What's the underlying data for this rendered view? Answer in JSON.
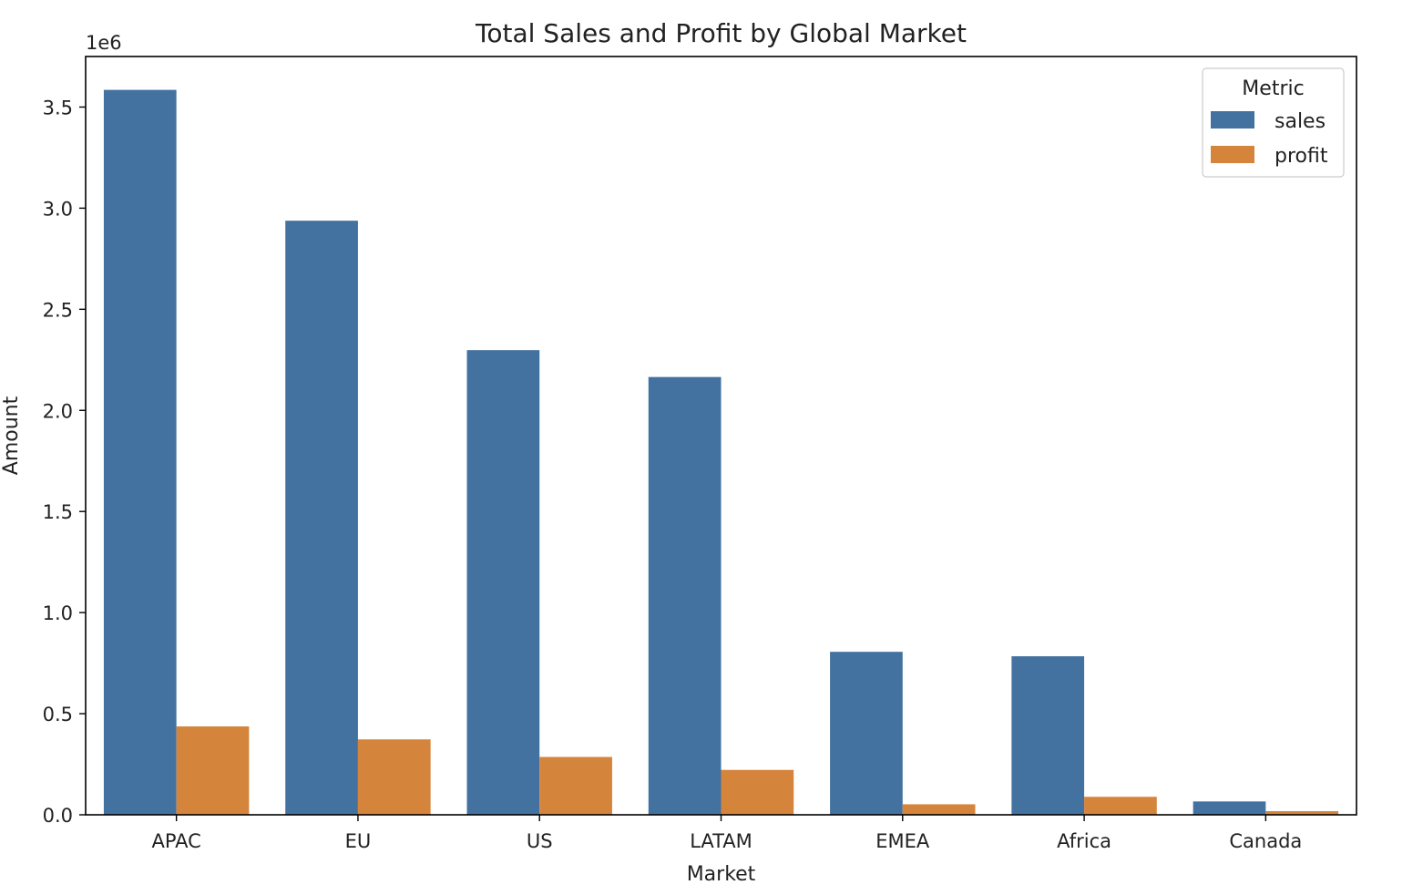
{
  "chart_data": {
    "type": "bar",
    "title": "Total Sales and Profit by Global Market",
    "xlabel": "Market",
    "ylabel": "Amount",
    "y_offset_label": "1e6",
    "y_scale": 1000000,
    "ylim": [
      0,
      3750000
    ],
    "yticks": [
      0,
      500000,
      1000000,
      1500000,
      2000000,
      2500000,
      3000000,
      3500000
    ],
    "ytick_labels": [
      "0.0",
      "0.5",
      "1.0",
      "1.5",
      "2.0",
      "2.5",
      "3.0",
      "3.5"
    ],
    "categories": [
      "APAC",
      "EU",
      "US",
      "LATAM",
      "EMEA",
      "Africa",
      "Canada"
    ],
    "series": [
      {
        "name": "sales",
        "color": "#4472a0",
        "values": [
          3585000,
          2938000,
          2298000,
          2165000,
          806000,
          784000,
          66000
        ]
      },
      {
        "name": "profit",
        "color": "#d5843c",
        "values": [
          437000,
          373000,
          286000,
          222000,
          52000,
          89000,
          18000
        ]
      }
    ],
    "legend": {
      "title": "Metric",
      "placement": "top-right"
    },
    "grid": false
  }
}
